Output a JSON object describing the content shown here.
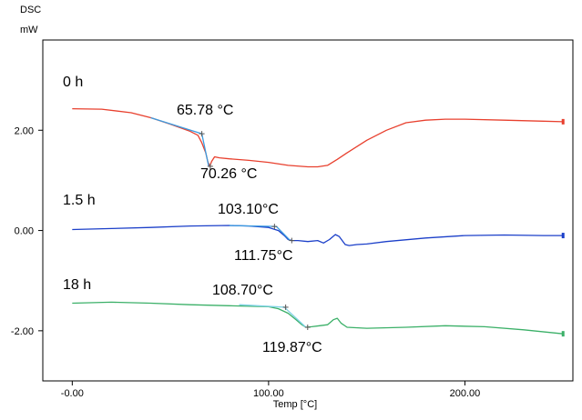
{
  "chart_data": {
    "type": "line",
    "title": "",
    "ylabel_lines": [
      "DSC",
      "mW"
    ],
    "xlabel": "Temp [°C]",
    "xlim": [
      -15,
      255
    ],
    "ylim": [
      -3.0,
      3.8
    ],
    "xticks": [
      0,
      100,
      200
    ],
    "xtick_labels": [
      "-0.00",
      "100.00",
      "200.00"
    ],
    "yticks": [
      2,
      0,
      -2
    ],
    "ytick_labels": [
      "2.00",
      "0.00",
      "-2.00"
    ],
    "grid": false,
    "legend": "none",
    "series": [
      {
        "label": "0 h",
        "color": "#e8402e",
        "x": [
          0,
          15,
          30,
          40,
          50,
          55,
          60,
          64,
          66,
          68,
          69,
          70,
          71,
          72.5,
          75,
          80,
          90,
          100,
          110,
          120,
          125,
          130,
          135,
          140,
          150,
          160,
          170,
          180,
          190,
          200,
          220,
          240,
          250
        ],
        "y": [
          2.43,
          2.42,
          2.35,
          2.25,
          2.12,
          2.05,
          1.98,
          1.9,
          1.75,
          1.55,
          1.38,
          1.28,
          1.38,
          1.47,
          1.45,
          1.43,
          1.4,
          1.36,
          1.3,
          1.27,
          1.27,
          1.3,
          1.42,
          1.55,
          1.8,
          2.0,
          2.15,
          2.2,
          2.22,
          2.22,
          2.2,
          2.18,
          2.17
        ]
      },
      {
        "label": "1.5 h",
        "color": "#1b3fc9",
        "x": [
          0,
          20,
          40,
          60,
          80,
          90,
          100,
          105,
          108,
          110,
          112,
          115,
          120,
          125,
          128,
          131,
          134,
          136,
          139,
          141,
          145,
          150,
          160,
          180,
          200,
          220,
          240,
          250
        ],
        "y": [
          0.02,
          0.04,
          0.06,
          0.09,
          0.1,
          0.09,
          0.06,
          0.0,
          -0.1,
          -0.18,
          -0.2,
          -0.2,
          -0.22,
          -0.2,
          -0.25,
          -0.18,
          -0.08,
          -0.12,
          -0.28,
          -0.3,
          -0.28,
          -0.27,
          -0.22,
          -0.15,
          -0.1,
          -0.09,
          -0.1,
          -0.1
        ]
      },
      {
        "label": "18 h",
        "color": "#3bb068",
        "x": [
          0,
          20,
          40,
          60,
          80,
          100,
          105,
          110,
          114,
          117,
          119,
          122,
          126,
          130,
          133,
          135,
          137,
          140,
          150,
          170,
          190,
          210,
          230,
          250
        ],
        "y": [
          -1.45,
          -1.43,
          -1.45,
          -1.48,
          -1.5,
          -1.52,
          -1.56,
          -1.65,
          -1.78,
          -1.88,
          -1.93,
          -1.92,
          -1.9,
          -1.88,
          -1.78,
          -1.75,
          -1.85,
          -1.93,
          -1.95,
          -1.93,
          -1.9,
          -1.92,
          -1.98,
          -2.06
        ]
      }
    ],
    "tangent_lines": [
      {
        "series": "0 h",
        "color": "#3a9be0",
        "x": [
          40,
          66
        ],
        "y": [
          2.25,
          1.93
        ]
      },
      {
        "series": "0 h",
        "color": "#3a9be0",
        "x": [
          66,
          69.5
        ],
        "y": [
          1.93,
          1.28
        ]
      },
      {
        "series": "1.5 h",
        "color": "#3a9be0",
        "x": [
          80,
          104
        ],
        "y": [
          0.1,
          0.08
        ]
      },
      {
        "series": "1.5 h",
        "color": "#3a9be0",
        "x": [
          104,
          111
        ],
        "y": [
          0.08,
          -0.2
        ]
      },
      {
        "series": "18 h",
        "color": "#7fd2e6",
        "x": [
          85,
          108
        ],
        "y": [
          -1.48,
          -1.53
        ]
      },
      {
        "series": "18 h",
        "color": "#7fd2e6",
        "x": [
          108,
          119
        ],
        "y": [
          -1.53,
          -1.93
        ]
      }
    ],
    "curve_labels": [
      "0 h",
      "1.5 h",
      "18 h"
    ],
    "annotations": [
      {
        "text": "65.78 °C",
        "x": 66,
        "y": 1.93
      },
      {
        "text": "70.26 °C",
        "x": 70.3,
        "y": 1.28
      },
      {
        "text": "103.10°C",
        "x": 103,
        "y": 0.08
      },
      {
        "text": "111.75°C",
        "x": 111.8,
        "y": -0.2
      },
      {
        "text": "108.70°C",
        "x": 108.7,
        "y": -1.53
      },
      {
        "text": "119.87°C",
        "x": 119.9,
        "y": -1.93
      }
    ]
  }
}
